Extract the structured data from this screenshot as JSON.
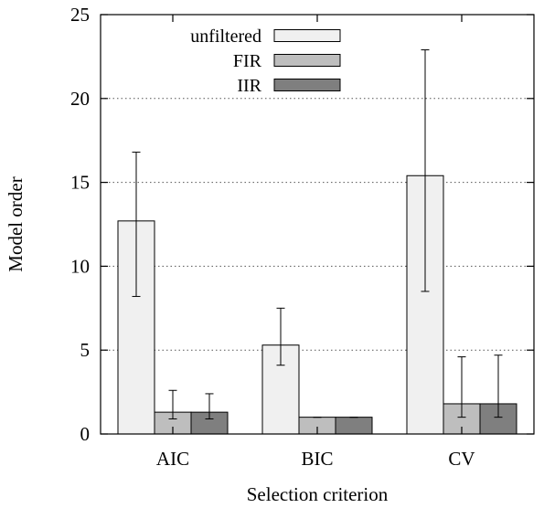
{
  "chart_data": {
    "type": "bar",
    "xlabel": "Selection criterion",
    "ylabel": "Model order",
    "categories": [
      "AIC",
      "BIC",
      "CV"
    ],
    "ylim": [
      0,
      25
    ],
    "yticks": [
      0,
      5,
      10,
      15,
      20,
      25
    ],
    "grid": "horizontal dotted",
    "legend_position": "top-left",
    "error_bars": true,
    "series": [
      {
        "name": "unfiltered",
        "color": "#f0f0f0",
        "values": [
          12.7,
          5.3,
          15.4
        ],
        "err_low": [
          8.2,
          4.1,
          8.5
        ],
        "err_high": [
          16.8,
          7.5,
          22.9
        ]
      },
      {
        "name": "FIR",
        "color": "#bebebe",
        "values": [
          1.3,
          1.0,
          1.8
        ],
        "err_low": [
          0.9,
          1.0,
          1.0
        ],
        "err_high": [
          2.6,
          1.0,
          4.6
        ]
      },
      {
        "name": "IIR",
        "color": "#7f7f7f",
        "values": [
          1.3,
          1.0,
          1.8
        ],
        "err_low": [
          0.9,
          1.0,
          1.0
        ],
        "err_high": [
          2.4,
          1.0,
          4.7
        ]
      }
    ]
  }
}
